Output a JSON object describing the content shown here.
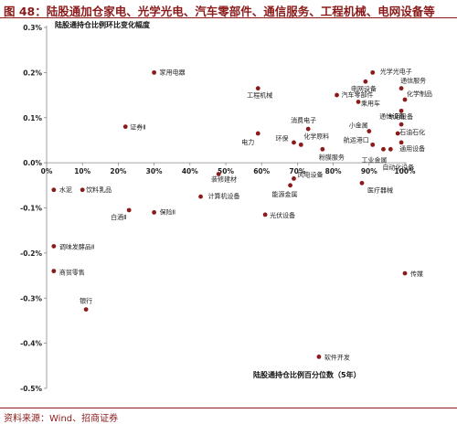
{
  "figure": {
    "title": "图 48：陆股通加仓家电、光学光电、汽车零部件、通信服务、工程机械、电网设备等",
    "source": "资料来源：Wind、招商证券"
  },
  "colors": {
    "title": "#8b1a1a",
    "marker": "#8b1a1a",
    "axis": "#888888"
  },
  "chart_data": {
    "type": "scatter",
    "ylabel": "陆股通持仓比例环比变化幅度",
    "xlabel": "陆股通持仓比例百分位数（5年）",
    "xlim": [
      0,
      1
    ],
    "ylim": [
      -0.5,
      0.3
    ],
    "x_ticks": [
      "0%",
      "10%",
      "20%",
      "30%",
      "40%",
      "50%",
      "60%",
      "70%",
      "80%",
      "90%",
      "100%"
    ],
    "y_ticks": [
      "0.3%",
      "0.2%",
      "0.1%",
      "0.0%",
      "-0.1%",
      "-0.2%",
      "-0.3%",
      "-0.4%",
      "-0.5%"
    ],
    "points": [
      {
        "name": "家用电器",
        "x": 0.3,
        "y": 0.2
      },
      {
        "name": "证券Ⅱ",
        "x": 0.22,
        "y": 0.08
      },
      {
        "name": "水泥",
        "x": 0.02,
        "y": -0.06
      },
      {
        "name": "饮料乳品",
        "x": 0.1,
        "y": -0.06
      },
      {
        "name": "白酒Ⅱ",
        "x": 0.23,
        "y": -0.105
      },
      {
        "name": "保险Ⅱ",
        "x": 0.3,
        "y": -0.11
      },
      {
        "name": "调味发酵品Ⅱ",
        "x": 0.02,
        "y": -0.185
      },
      {
        "name": "商贸零售",
        "x": 0.02,
        "y": -0.24
      },
      {
        "name": "银行",
        "x": 0.11,
        "y": -0.325
      },
      {
        "name": "装修建材",
        "x": 0.48,
        "y": -0.025
      },
      {
        "name": "计算机设备",
        "x": 0.43,
        "y": -0.075
      },
      {
        "name": "工程机械",
        "x": 0.59,
        "y": 0.165
      },
      {
        "name": "电力",
        "x": 0.59,
        "y": 0.065
      },
      {
        "name": "光伏设备",
        "x": 0.61,
        "y": -0.115
      },
      {
        "name": "消费电子",
        "x": 0.73,
        "y": 0.075
      },
      {
        "name": "环保",
        "x": 0.69,
        "y": 0.045
      },
      {
        "name": "化学原料",
        "x": 0.71,
        "y": 0.04
      },
      {
        "name": "风电设备",
        "x": 0.69,
        "y": -0.035
      },
      {
        "name": "能源金属",
        "x": 0.68,
        "y": -0.05
      },
      {
        "name": "粉膜服务",
        "x": 0.77,
        "y": 0.03
      },
      {
        "name": "软件开发",
        "x": 0.76,
        "y": -0.43
      },
      {
        "name": "光学光电子",
        "x": 0.91,
        "y": 0.2
      },
      {
        "name": "电网设备",
        "x": 0.89,
        "y": 0.18
      },
      {
        "name": "通信服务",
        "x": 0.99,
        "y": 0.165
      },
      {
        "name": "汽车零部件",
        "x": 0.81,
        "y": 0.15
      },
      {
        "name": "乘用车",
        "x": 0.87,
        "y": 0.135
      },
      {
        "name": "化学制品",
        "x": 1.0,
        "y": 0.14
      },
      {
        "name": "通信设备",
        "x": 0.99,
        "y": 0.115
      },
      {
        "name": "小金属",
        "x": 0.9,
        "y": 0.07
      },
      {
        "name": "专用设备",
        "x": 0.99,
        "y": 0.085
      },
      {
        "name": "石油石化",
        "x": 0.98,
        "y": 0.065
      },
      {
        "name": "航运港口",
        "x": 0.91,
        "y": 0.04
      },
      {
        "name": "通用设备",
        "x": 0.99,
        "y": 0.045
      },
      {
        "name": "工业金属",
        "x": 0.94,
        "y": 0.03
      },
      {
        "name": "自动化设备",
        "x": 0.96,
        "y": 0.03
      },
      {
        "name": "医疗器械",
        "x": 0.88,
        "y": -0.045
      },
      {
        "name": "传媒",
        "x": 1.0,
        "y": -0.245
      }
    ]
  }
}
